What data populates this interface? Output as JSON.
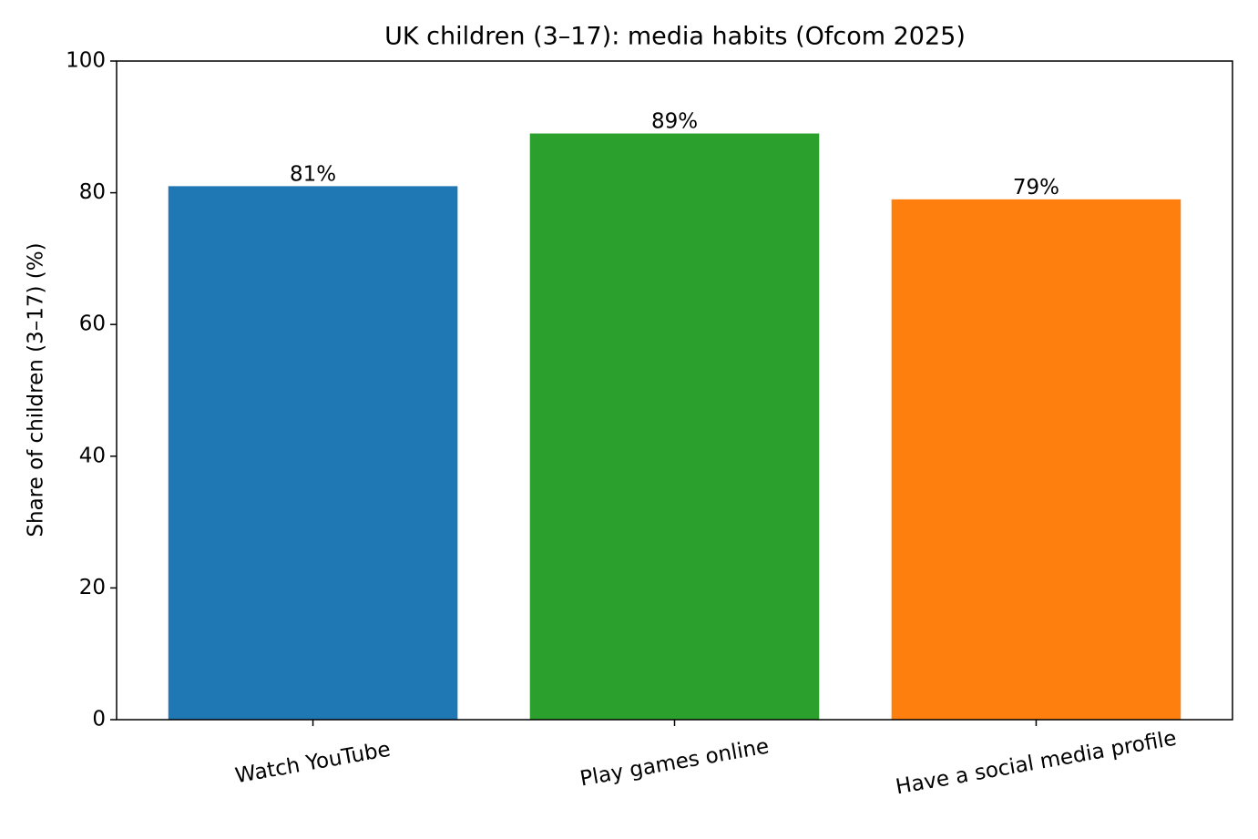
{
  "chart_data": {
    "type": "bar",
    "title": "UK children (3–17): media habits (Ofcom 2025)",
    "y_label": "Share of children (3–17) (%)",
    "categories": [
      "Watch YouTube",
      "Play games online",
      "Have a social media profile"
    ],
    "values": [
      81,
      89,
      79
    ],
    "value_labels": [
      "81%",
      "89%",
      "79%"
    ],
    "colors": [
      "#1f77b4",
      "#2ca02c",
      "#ff7f0e"
    ],
    "ylim": [
      0,
      100
    ],
    "yticks": [
      0,
      20,
      40,
      60,
      80,
      100
    ],
    "grid": false
  }
}
